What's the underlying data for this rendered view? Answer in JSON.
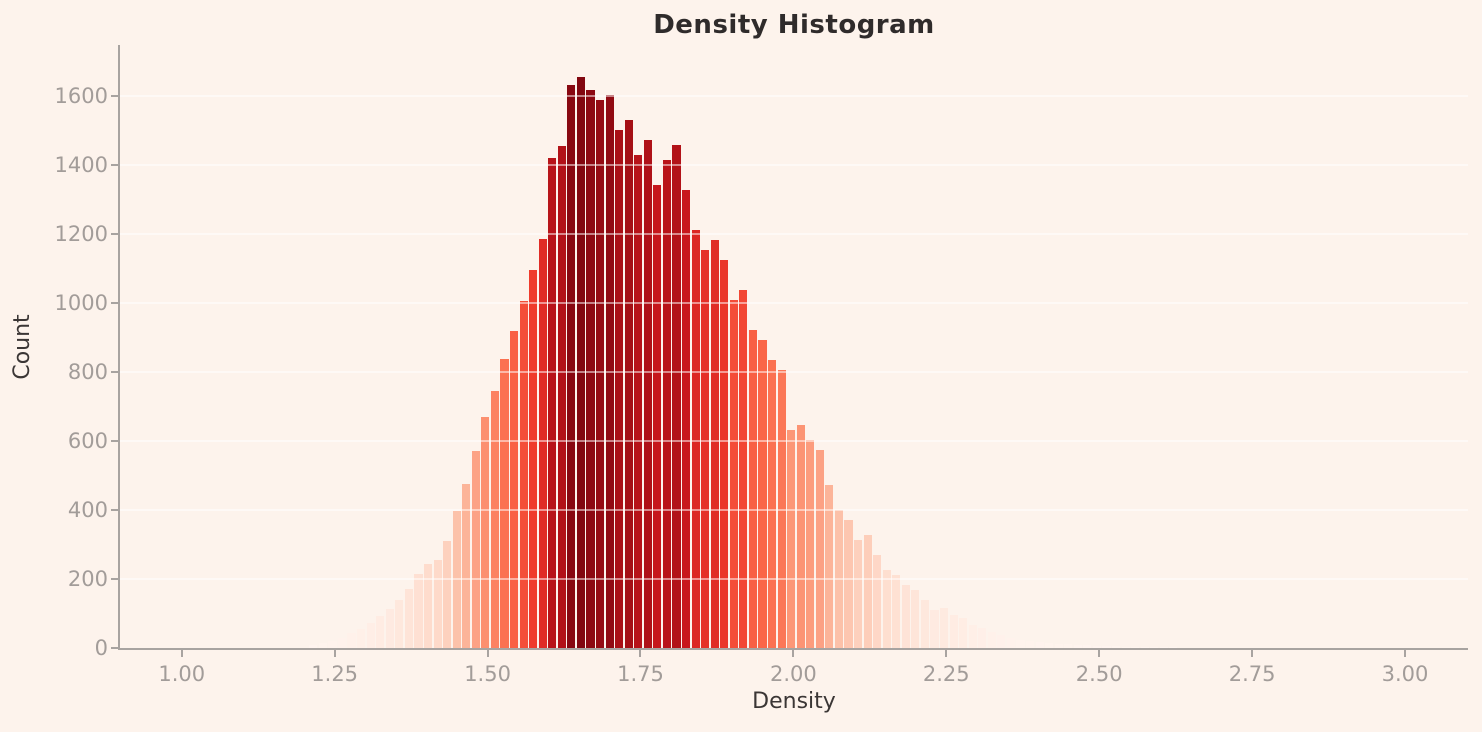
{
  "chart_data": {
    "type": "histogram",
    "title": "Density Histogram",
    "xlabel": "Density",
    "ylabel": "Count",
    "legend": "none",
    "grid": "horizontal",
    "colormap": "Reds",
    "color_norm_max": 1750,
    "xlim": [
      0.899,
      3.103
    ],
    "ylim": [
      0,
      1748
    ],
    "bins": {
      "start": 1.2073,
      "width": 0.015625,
      "n": 91
    },
    "x_ticks": {
      "values": [
        1.0,
        1.25,
        1.5,
        1.75,
        2.0,
        2.25,
        2.5,
        2.75,
        3.0
      ],
      "labels": [
        "1.00",
        "1.25",
        "1.50",
        "1.75",
        "2.00",
        "2.25",
        "2.50",
        "2.75",
        "3.00"
      ]
    },
    "y_ticks": {
      "values": [
        0,
        200,
        400,
        600,
        800,
        1000,
        1200,
        1400,
        1600
      ],
      "labels": [
        "0",
        "200",
        "400",
        "600",
        "800",
        "1000",
        "1200",
        "1400",
        "1600"
      ]
    },
    "counts": [
      9,
      14,
      20,
      30,
      43,
      55,
      72,
      93,
      112,
      138,
      172,
      215,
      243,
      255,
      310,
      398,
      475,
      570,
      670,
      745,
      838,
      920,
      1005,
      1095,
      1185,
      1420,
      1455,
      1632,
      1655,
      1617,
      1589,
      1603,
      1502,
      1531,
      1429,
      1473,
      1342,
      1415,
      1458,
      1328,
      1212,
      1154,
      1183,
      1125,
      1009,
      1038,
      922,
      893,
      835,
      806,
      632,
      647,
      603,
      574,
      473,
      400,
      371,
      313,
      328,
      270,
      226,
      212,
      183,
      168,
      139,
      110,
      116,
      96,
      87,
      67,
      58,
      46,
      38,
      29,
      23,
      20,
      17,
      15,
      12,
      12,
      9,
      9,
      6,
      6,
      5,
      4,
      4,
      3,
      3,
      2,
      2
    ],
    "reds_colormap_stops": [
      "#fff5f0",
      "#fee0d2",
      "#fcbba1",
      "#fc9272",
      "#fb6a4a",
      "#ef3b2c",
      "#cb181d",
      "#a50f15",
      "#67000d"
    ]
  },
  "colors": {
    "background": "#fdf3ec",
    "title": "#2f2b2b",
    "axis_label": "#3b3635",
    "tick_label": "#a29c99",
    "spine": "#a8a3a0",
    "gridline": "rgba(255,255,255,0.5)"
  }
}
